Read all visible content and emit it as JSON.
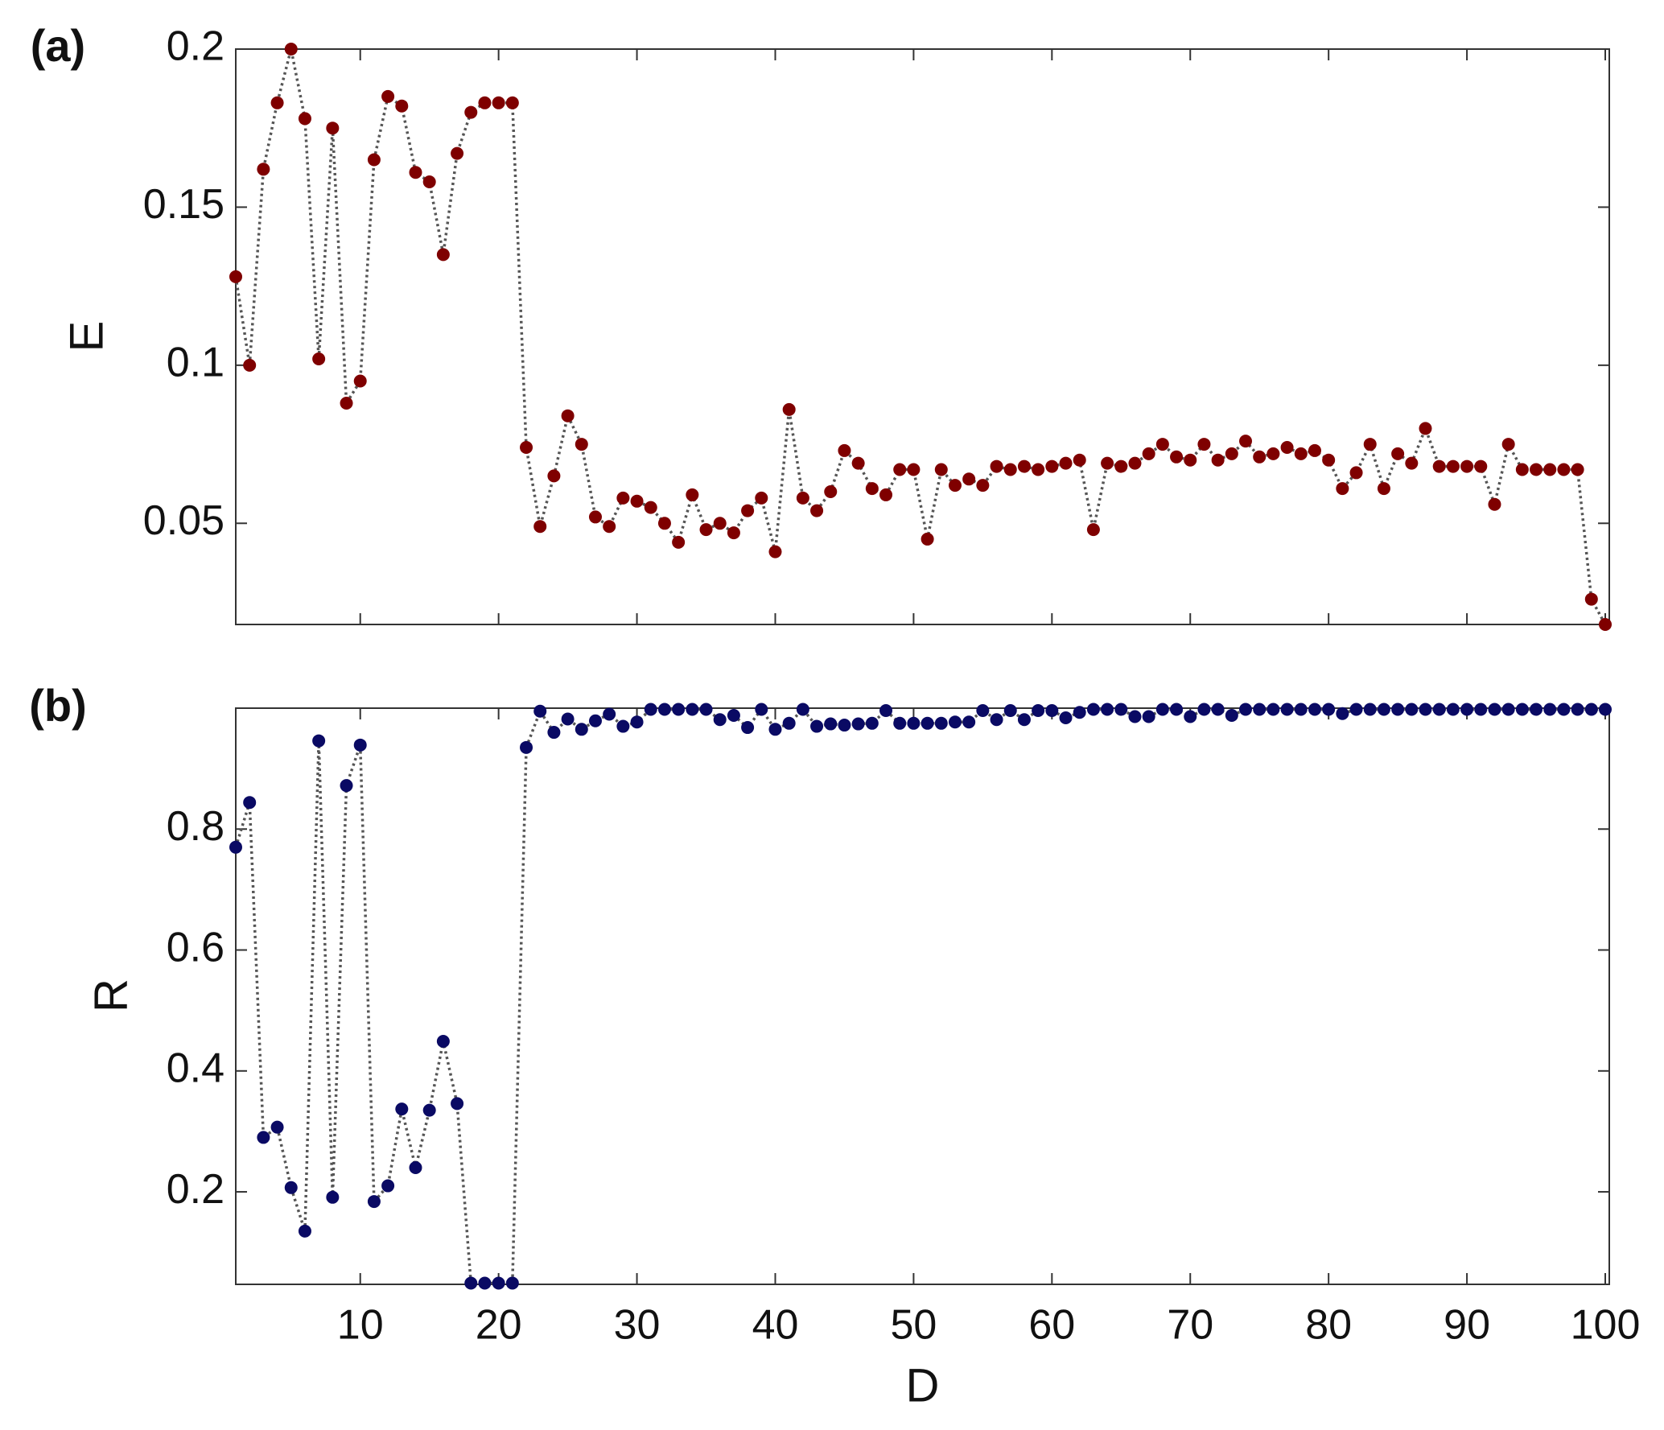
{
  "chart_data": [
    {
      "type": "line",
      "panel_label": "(a)",
      "ylabel": "E",
      "color": "#7f0000",
      "line_color": "#555555",
      "line_style": "dotted",
      "markers": true,
      "xtick_labels": false,
      "x": [
        1,
        2,
        3,
        4,
        5,
        6,
        7,
        8,
        9,
        10,
        11,
        12,
        13,
        14,
        15,
        16,
        17,
        18,
        19,
        20,
        21,
        22,
        23,
        24,
        25,
        26,
        27,
        28,
        29,
        30,
        31,
        32,
        33,
        34,
        35,
        36,
        37,
        38,
        39,
        40,
        41,
        42,
        43,
        44,
        45,
        46,
        47,
        48,
        49,
        50,
        51,
        52,
        53,
        54,
        55,
        56,
        57,
        58,
        59,
        60,
        61,
        62,
        63,
        64,
        65,
        66,
        67,
        68,
        69,
        70,
        71,
        72,
        73,
        74,
        75,
        76,
        77,
        78,
        79,
        80,
        81,
        82,
        83,
        84,
        85,
        86,
        87,
        88,
        89,
        90,
        91,
        92,
        93,
        94,
        95,
        96,
        97,
        98,
        99,
        100
      ],
      "values": [
        0.128,
        0.1,
        0.162,
        0.183,
        0.2,
        0.178,
        0.102,
        0.175,
        0.088,
        0.095,
        0.165,
        0.185,
        0.182,
        0.161,
        0.158,
        0.135,
        0.167,
        0.18,
        0.183,
        0.183,
        0.183,
        0.074,
        0.049,
        0.065,
        0.084,
        0.075,
        0.052,
        0.049,
        0.058,
        0.057,
        0.055,
        0.05,
        0.044,
        0.059,
        0.048,
        0.05,
        0.047,
        0.054,
        0.058,
        0.041,
        0.086,
        0.058,
        0.054,
        0.06,
        0.073,
        0.069,
        0.061,
        0.059,
        0.067,
        0.067,
        0.045,
        0.067,
        0.062,
        0.064,
        0.062,
        0.068,
        0.067,
        0.068,
        0.067,
        0.068,
        0.069,
        0.07,
        0.048,
        0.069,
        0.068,
        0.069,
        0.072,
        0.075,
        0.071,
        0.07,
        0.075,
        0.07,
        0.072,
        0.076,
        0.071,
        0.072,
        0.074,
        0.072,
        0.073,
        0.07,
        0.061,
        0.066,
        0.075,
        0.061,
        0.072,
        0.069,
        0.08,
        0.068,
        0.068,
        0.068,
        0.068,
        0.056,
        0.075,
        0.067,
        0.067,
        0.067,
        0.067,
        0.067,
        0.026,
        0.018
      ],
      "xlim": [
        1,
        100
      ],
      "xticks": [
        10,
        20,
        30,
        40,
        50,
        60,
        70,
        80,
        90,
        100
      ],
      "ylim": [
        0.018,
        0.2
      ],
      "yticks": [
        0.05,
        0.1,
        0.15,
        0.2
      ]
    },
    {
      "type": "line",
      "panel_label": "(b)",
      "ylabel": "R",
      "xlabel": "D",
      "color": "#0a0a64",
      "line_color": "#555555",
      "line_style": "dotted",
      "markers": true,
      "xtick_labels": true,
      "x": [
        1,
        2,
        3,
        4,
        5,
        6,
        7,
        8,
        9,
        10,
        11,
        12,
        13,
        14,
        15,
        16,
        17,
        18,
        19,
        20,
        21,
        22,
        23,
        24,
        25,
        26,
        27,
        28,
        29,
        30,
        31,
        32,
        33,
        34,
        35,
        36,
        37,
        38,
        39,
        40,
        41,
        42,
        43,
        44,
        45,
        46,
        47,
        48,
        49,
        50,
        51,
        52,
        53,
        54,
        55,
        56,
        57,
        58,
        59,
        60,
        61,
        62,
        63,
        64,
        65,
        66,
        67,
        68,
        69,
        70,
        71,
        72,
        73,
        74,
        75,
        76,
        77,
        78,
        79,
        80,
        81,
        82,
        83,
        84,
        85,
        86,
        87,
        88,
        89,
        90,
        91,
        92,
        93,
        94,
        95,
        96,
        97,
        98,
        99,
        100
      ],
      "values": [
        0.77,
        0.844,
        0.29,
        0.307,
        0.207,
        0.135,
        0.946,
        0.191,
        0.872,
        0.939,
        0.184,
        0.21,
        0.337,
        0.24,
        0.335,
        0.449,
        0.346,
        0.049,
        0.049,
        0.049,
        0.049,
        0.935,
        0.995,
        0.96,
        0.982,
        0.965,
        0.979,
        0.99,
        0.97,
        0.977,
        0.998,
        0.998,
        0.998,
        0.998,
        0.998,
        0.981,
        0.988,
        0.968,
        0.998,
        0.965,
        0.975,
        0.998,
        0.97,
        0.974,
        0.972,
        0.974,
        0.975,
        0.996,
        0.975,
        0.975,
        0.975,
        0.975,
        0.977,
        0.977,
        0.996,
        0.981,
        0.996,
        0.981,
        0.996,
        0.996,
        0.984,
        0.993,
        0.998,
        0.998,
        0.998,
        0.986,
        0.986,
        0.998,
        0.998,
        0.986,
        0.998,
        0.998,
        0.988,
        0.998,
        0.998,
        0.998,
        0.998,
        0.998,
        0.998,
        0.998,
        0.991,
        0.998,
        0.998,
        0.998,
        0.998,
        0.998,
        0.998,
        0.998,
        0.998,
        0.998,
        0.998,
        0.998,
        0.998,
        0.998,
        0.998,
        0.998,
        0.998,
        0.998,
        0.998,
        0.998
      ],
      "xlim": [
        1,
        100
      ],
      "xticks": [
        10,
        20,
        30,
        40,
        50,
        60,
        70,
        80,
        90,
        100
      ],
      "ylim": [
        0.047,
        1
      ],
      "yticks": [
        0.2,
        0.4,
        0.6,
        0.8
      ]
    }
  ]
}
